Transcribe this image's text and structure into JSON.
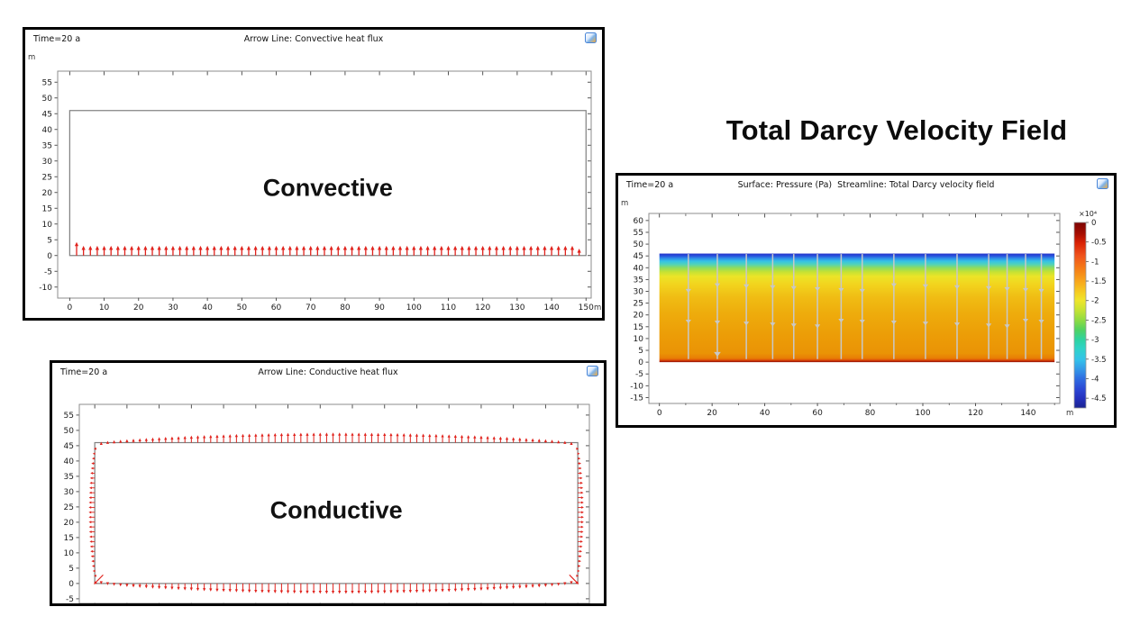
{
  "chart_data": [
    {
      "id": "convective",
      "type": "arrow_line",
      "title": "Arrow Line: Convective heat flux",
      "time_annotation": "Time=20 a",
      "center_label": "Convective",
      "center_label_y": 21.5,
      "x_unit": "m",
      "y_unit": "m",
      "xlim": [
        -3.5,
        151.5
      ],
      "ylim": [
        -13.5,
        58.5
      ],
      "x_ticks": [
        0,
        10,
        20,
        30,
        40,
        50,
        60,
        70,
        80,
        90,
        100,
        110,
        120,
        130,
        140,
        150
      ],
      "y_ticks": [
        55,
        50,
        45,
        40,
        35,
        30,
        25,
        20,
        15,
        10,
        5,
        0,
        -5,
        -10
      ],
      "show_x_labels": true,
      "domain": {
        "x": [
          0,
          150
        ],
        "y": [
          0,
          46
        ]
      },
      "domain_outline": true,
      "arrow_color": "#e0221c",
      "arrows": [
        {
          "along": "x",
          "base": 0,
          "direction": "up",
          "span": [
            2,
            148
          ],
          "count": 74,
          "profile": "flat",
          "length": 3.1,
          "first_length": 4.3,
          "last_length": 2.2,
          "head": [
            2.1,
            4.6
          ],
          "width": 1.3
        }
      ]
    },
    {
      "id": "conductive",
      "type": "arrow_line",
      "title": "Arrow Line: Conductive heat flux",
      "time_annotation": "Time=20 a",
      "center_label": "Conductive",
      "center_label_y": 24,
      "xlim": [
        -4.8,
        153.6
      ],
      "ylim": [
        -6.5,
        58.5
      ],
      "x_ticks": [
        0,
        10,
        20,
        30,
        40,
        50,
        60,
        70,
        80,
        90,
        100,
        110,
        120,
        130,
        140,
        150
      ],
      "y_ticks": [
        55,
        50,
        45,
        40,
        35,
        30,
        25,
        20,
        15,
        10,
        5,
        0,
        -5
      ],
      "show_x_labels": false,
      "domain": {
        "x": [
          0,
          150
        ],
        "y": [
          0,
          46
        ]
      },
      "domain_outline": true,
      "arrow_color": "#e0221c",
      "arrows": [
        {
          "along": "x",
          "base": 46,
          "direction": "up",
          "span": [
            2,
            148
          ],
          "count": 74,
          "profile": "bell",
          "min_length": 0.25,
          "max_length": 3.3,
          "head": [
            1.6,
            3.4
          ],
          "width": 1.0
        },
        {
          "along": "x",
          "base": 0,
          "direction": "down",
          "span": [
            2,
            148
          ],
          "count": 74,
          "profile": "bell",
          "min_length": 0.25,
          "max_length": 3.4,
          "head": [
            1.6,
            3.4
          ],
          "width": 1.0
        },
        {
          "along": "y",
          "base": 0,
          "direction": "left",
          "span": [
            2.5,
            44
          ],
          "count": 27,
          "profile": "bell",
          "min_length": 0.3,
          "max_length": 1.9,
          "head": [
            1.4,
            2.8
          ],
          "width": 0.9
        },
        {
          "along": "y",
          "base": 150,
          "direction": "right",
          "span": [
            2.5,
            44
          ],
          "count": 27,
          "profile": "bell",
          "min_length": 0.3,
          "max_length": 1.9,
          "head": [
            1.4,
            2.8
          ],
          "width": 0.9
        }
      ],
      "corner_arrows": [
        {
          "from": [
            2.6,
            2.8
          ],
          "to": [
            -0.3,
            -0.3
          ]
        },
        {
          "from": [
            147.4,
            2.8
          ],
          "to": [
            150.3,
            -0.3
          ]
        }
      ]
    },
    {
      "id": "darcy",
      "type": "surface_streamline",
      "heading": "Total Darcy Velocity Field",
      "title": "Surface: Pressure (Pa)  Streamline: Total Darcy velocity field",
      "time_annotation": "Time=20 a",
      "surface_quantity": "Pressure (Pa)",
      "streamline_quantity": "Total Darcy velocity field",
      "x_unit": "m",
      "y_unit": "m",
      "xlim": [
        -4,
        152
      ],
      "ylim": [
        -17.5,
        63
      ],
      "x_ticks": [
        0,
        20,
        40,
        60,
        80,
        100,
        120,
        140
      ],
      "x_minor_ticks": [
        10,
        30,
        50,
        70,
        90,
        110,
        130,
        150
      ],
      "y_ticks": [
        60,
        55,
        50,
        45,
        40,
        35,
        30,
        25,
        20,
        15,
        10,
        5,
        0,
        -5,
        -10,
        -15
      ],
      "show_x_labels": true,
      "domain": {
        "x": [
          0,
          150
        ],
        "y": [
          0,
          46
        ]
      },
      "domain_outline": false,
      "surface": {
        "x": [
          0,
          150
        ],
        "y": [
          0,
          46
        ],
        "gradient": [
          [
            0,
            "#2433c8"
          ],
          [
            0.02,
            "#2850dc"
          ],
          [
            0.045,
            "#2f8fe8"
          ],
          [
            0.07,
            "#35c2e6"
          ],
          [
            0.1,
            "#51d3b8"
          ],
          [
            0.13,
            "#8cdb62"
          ],
          [
            0.17,
            "#c6e233"
          ],
          [
            0.21,
            "#ebe428"
          ],
          [
            0.28,
            "#f2d51e"
          ],
          [
            0.4,
            "#f0bd14"
          ],
          [
            0.55,
            "#eeac0c"
          ],
          [
            0.75,
            "#ec9d07"
          ],
          [
            0.92,
            "#ea9305"
          ],
          [
            0.965,
            "#e87c05"
          ],
          [
            0.978,
            "#e05a08"
          ],
          [
            0.988,
            "#c62f06"
          ],
          [
            1,
            "#8e0f04"
          ]
        ]
      },
      "streamlines": {
        "color": "#c8c8c8",
        "width": 1.5,
        "x_positions": [
          11,
          22,
          33,
          43,
          51,
          60,
          69,
          77,
          89,
          101,
          113,
          125,
          132,
          139,
          145
        ],
        "y_top": 45.8,
        "y_bottom": 1.3,
        "arrowhead_rows": [
          30.5,
          15.5
        ],
        "bottom_arrow_x": 22,
        "bottom_arrow_y": 2.3
      },
      "colorbar": {
        "multiplier_label": "×10⁴",
        "tick_values": [
          "0",
          "-0.5",
          "-1",
          "-1.5",
          "-2",
          "-2.5",
          "-3",
          "-3.5",
          "-4",
          "-4.5"
        ],
        "value_top": 0,
        "value_bottom": -4.75,
        "gradient": [
          [
            0,
            "#7c0403"
          ],
          [
            0.06,
            "#a50d02"
          ],
          [
            0.11,
            "#d92104"
          ],
          [
            0.18,
            "#f0531c"
          ],
          [
            0.25,
            "#f57d17"
          ],
          [
            0.32,
            "#f8a81c"
          ],
          [
            0.38,
            "#f5cf22"
          ],
          [
            0.42,
            "#efe52b"
          ],
          [
            0.47,
            "#c8e332"
          ],
          [
            0.53,
            "#8bdb43"
          ],
          [
            0.58,
            "#4fd262"
          ],
          [
            0.63,
            "#2ed39f"
          ],
          [
            0.68,
            "#2fd3c8"
          ],
          [
            0.74,
            "#33c2ea"
          ],
          [
            0.79,
            "#349ae8"
          ],
          [
            0.84,
            "#2f6ee2"
          ],
          [
            0.9,
            "#2b46d4"
          ],
          [
            0.95,
            "#2430bd"
          ],
          [
            1,
            "#1b2490"
          ]
        ]
      }
    }
  ]
}
